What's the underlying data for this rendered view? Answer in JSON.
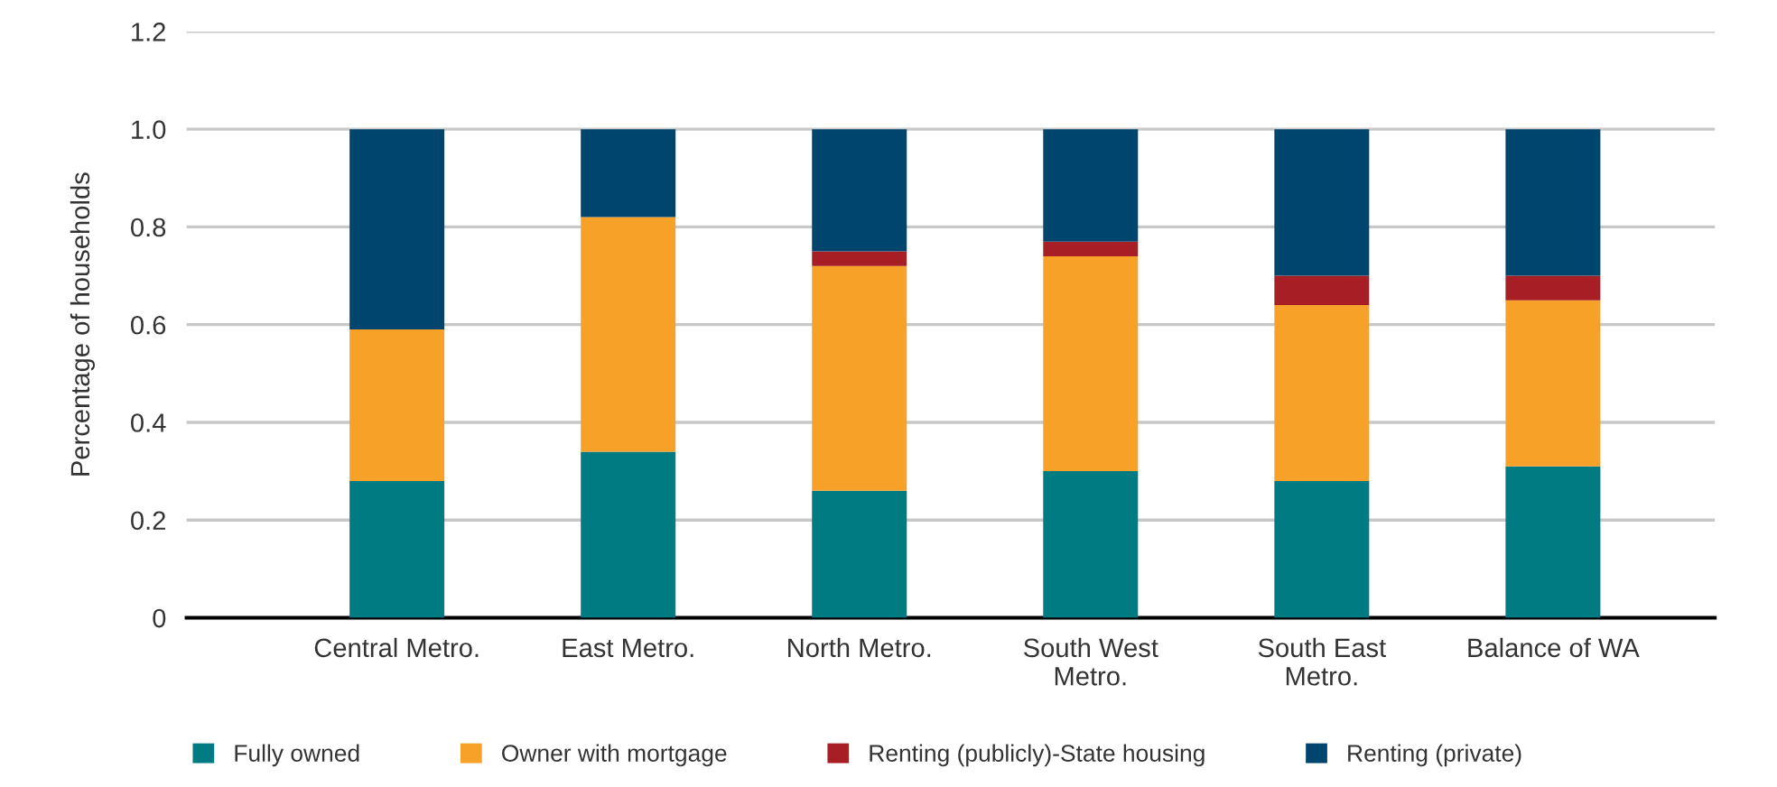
{
  "chart_data": {
    "type": "bar",
    "stacked": true,
    "ylabel": "Percentage of households",
    "categories": [
      "Central Metro.",
      "East Metro.",
      "North Metro.",
      "South West\nMetro.",
      "South East\nMetro.",
      "Balance of WA"
    ],
    "series": [
      {
        "name": "Fully owned",
        "color": "#007b82",
        "values": [
          0.28,
          0.34,
          0.26,
          0.3,
          0.28,
          0.31
        ]
      },
      {
        "name": "Owner with mortgage",
        "color": "#f8a128",
        "values": [
          0.31,
          0.48,
          0.46,
          0.44,
          0.36,
          0.34
        ]
      },
      {
        "name": "Renting (publicly)-State housing",
        "color": "#a71f24",
        "values": [
          0,
          0,
          0.03,
          0.03,
          0.06,
          0.05
        ]
      },
      {
        "name": "Renting (private)",
        "color": "#00456e",
        "values": [
          0.41,
          0.18,
          0.25,
          0.23,
          0.3,
          0.3
        ]
      }
    ],
    "ylim": [
      0,
      1.2
    ],
    "yticks": [
      0,
      0.2,
      0.4,
      0.6,
      0.8,
      {
        "value": 1,
        "label": "1.0"
      },
      1.2
    ],
    "grid": "y",
    "legend": "bottom"
  }
}
